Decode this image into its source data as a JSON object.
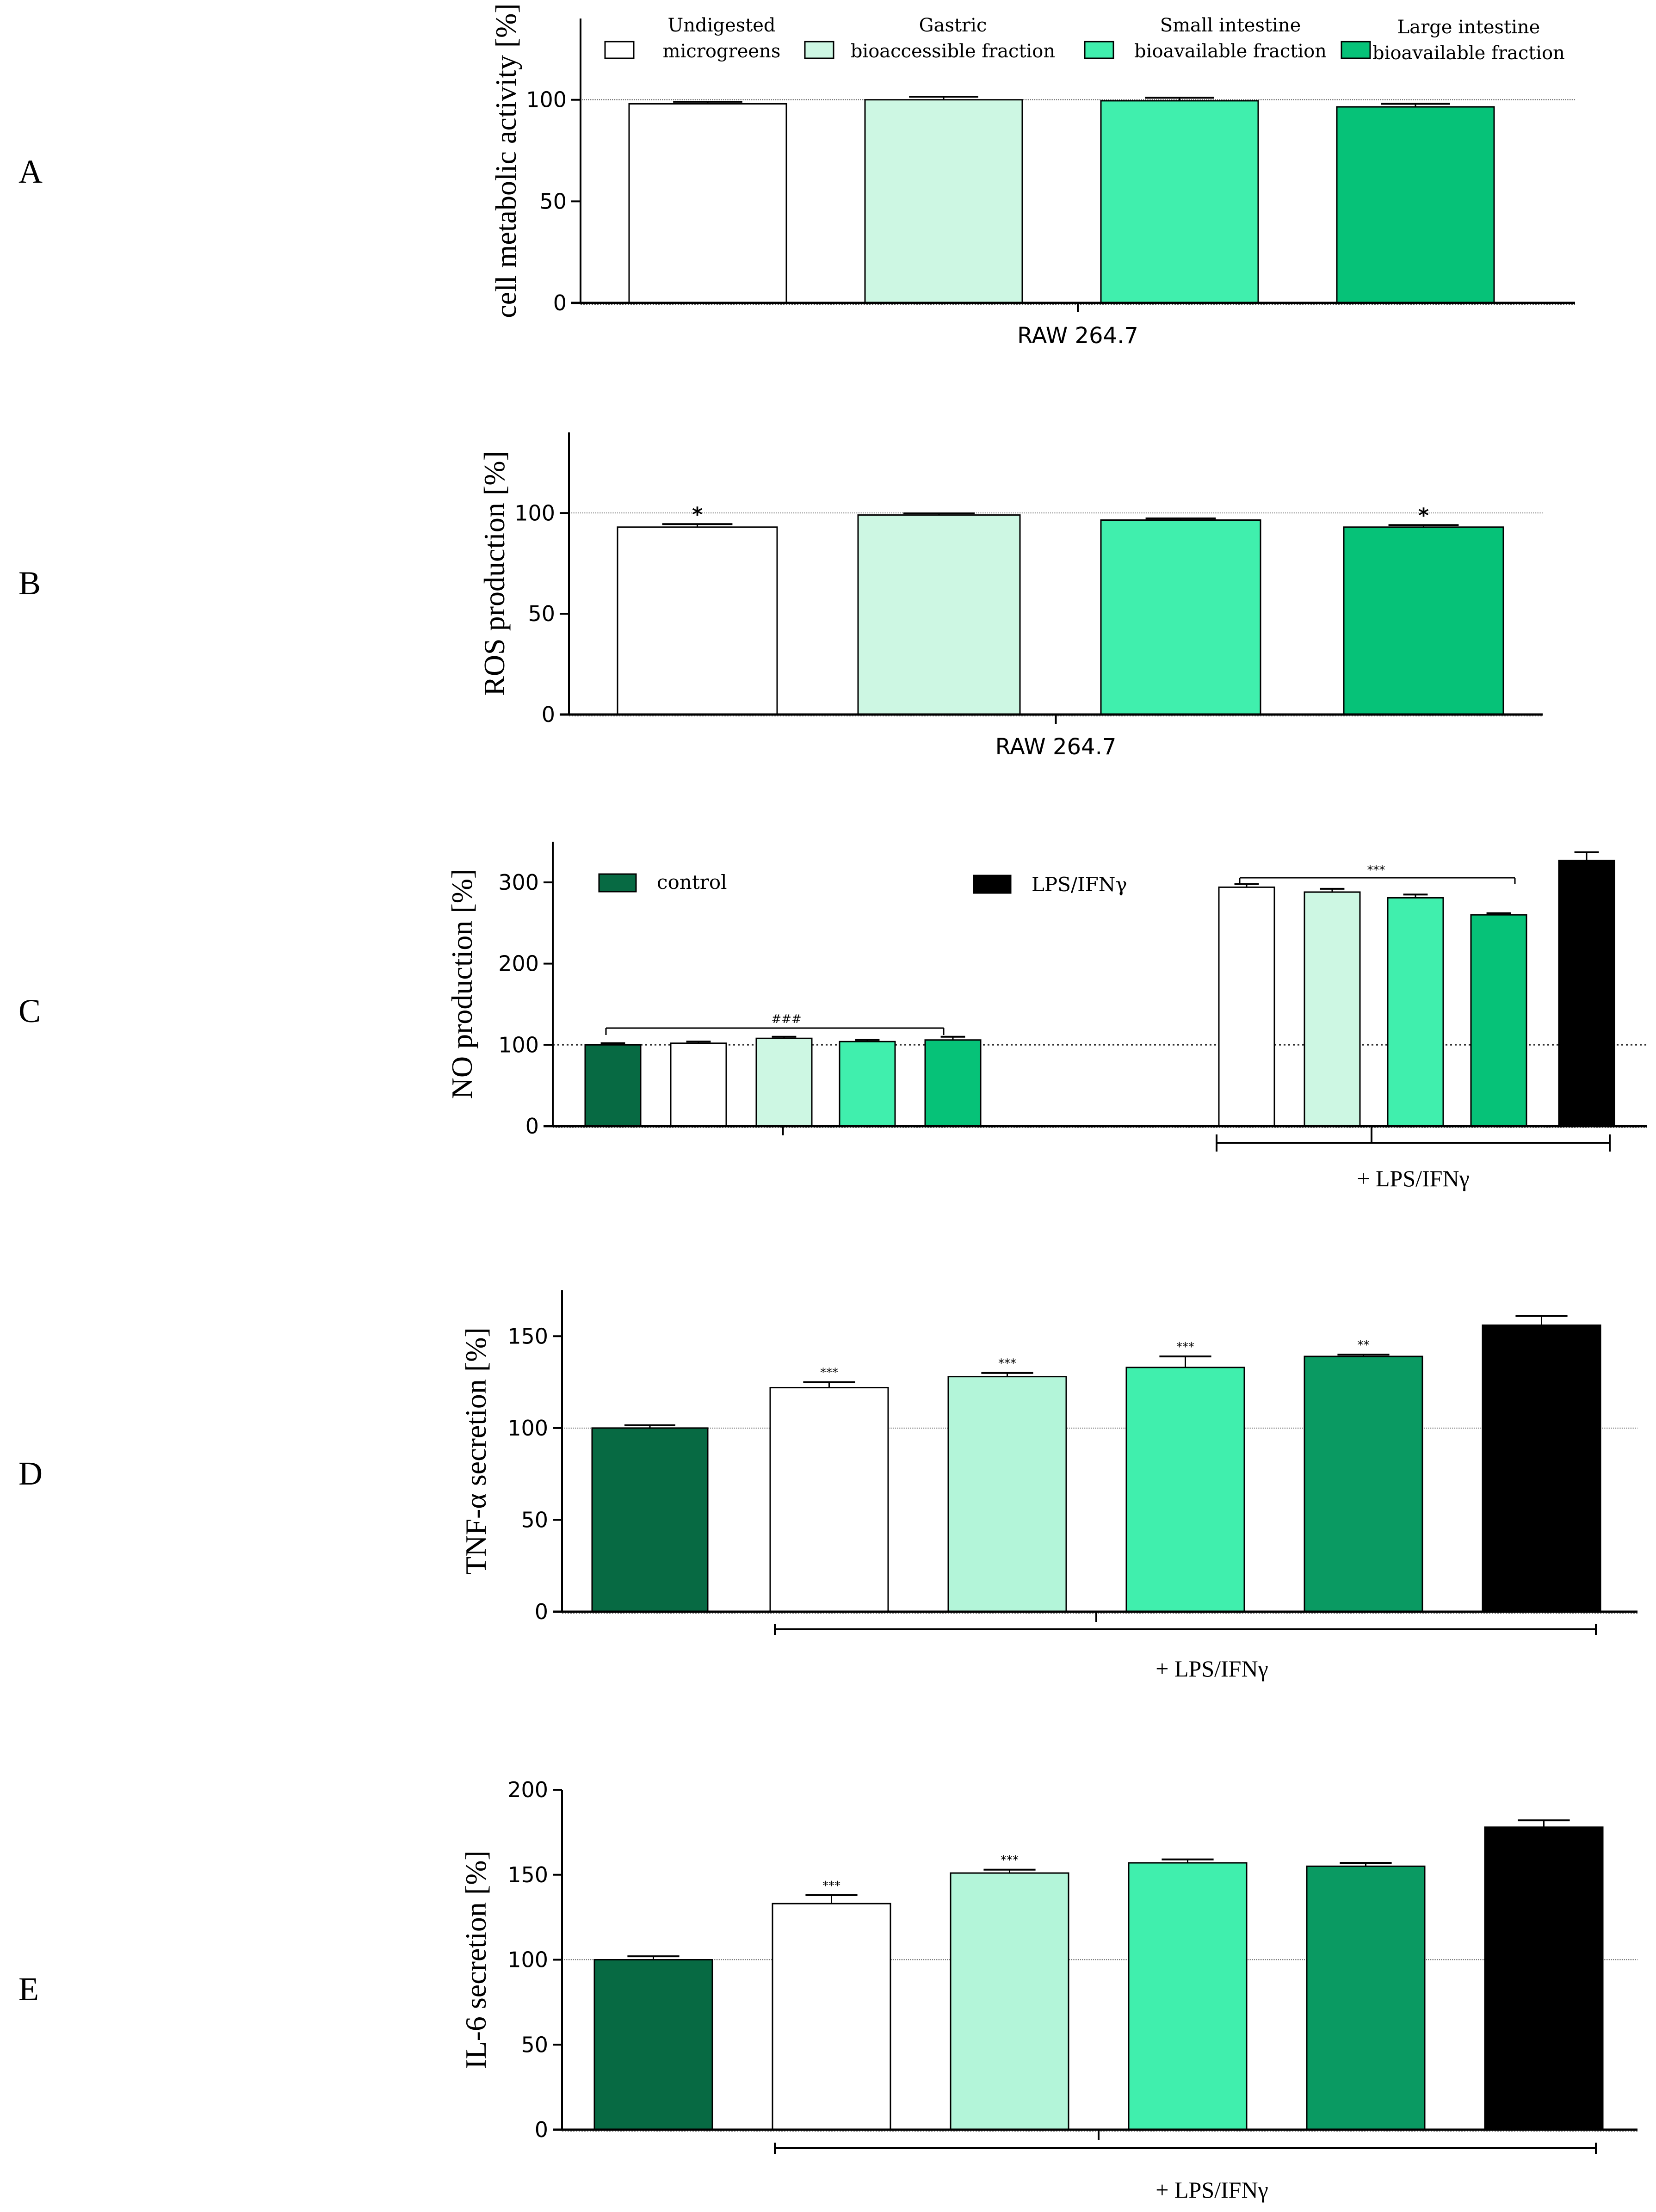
{
  "colors": {
    "white": "#ffffff",
    "gastric": "#cdf7e3",
    "gastric_light": "#b3f5d9",
    "small_intestine": "#40efad",
    "large_intestine": "#06c278",
    "large_intestine_dark": "#0a9a62",
    "control": "#076a43",
    "lps": "#000000"
  },
  "legend_A": [
    {
      "line1": "Undigested",
      "line2": "microgreens",
      "color": "white"
    },
    {
      "line1": "Gastric",
      "line2": "bioaccessible fraction",
      "color": "gastric"
    },
    {
      "line1": "Small intestine",
      "line2": "bioavailable fraction",
      "color": "small_intestine"
    },
    {
      "line1": "Large intestine",
      "line2": "bioavailable fraction",
      "color": "large_intestine"
    }
  ],
  "legend_C": {
    "control": "control",
    "lps": "LPS/IFNγ"
  },
  "chart_data": [
    {
      "panel": "A",
      "type": "bar",
      "ylabel": "cell metabolic activity [%]",
      "xlabel": "RAW 264.7",
      "ylim": [
        0,
        140
      ],
      "yticks": [
        0,
        50,
        100
      ],
      "reference_line": 100,
      "bars": [
        {
          "name": "Undigested microgreens",
          "value": 98,
          "error": 1,
          "sig": "",
          "color": "white"
        },
        {
          "name": "Gastric bioaccessible fraction",
          "value": 100,
          "error": 1.5,
          "sig": "",
          "color": "gastric"
        },
        {
          "name": "Small intestine bioavailable fraction",
          "value": 99.5,
          "error": 1.5,
          "sig": "",
          "color": "small_intestine"
        },
        {
          "name": "Large intestine bioavailable fraction",
          "value": 96.5,
          "error": 1.5,
          "sig": "",
          "color": "large_intestine"
        }
      ]
    },
    {
      "panel": "B",
      "type": "bar",
      "ylabel": "ROS production [%]",
      "xlabel": "RAW 264.7",
      "ylim": [
        0,
        140
      ],
      "yticks": [
        0,
        50,
        100
      ],
      "reference_line": 100,
      "bars": [
        {
          "name": "Undigested microgreens",
          "value": 93,
          "error": 1.5,
          "sig": "*",
          "color": "white"
        },
        {
          "name": "Gastric bioaccessible fraction",
          "value": 99,
          "error": 0.8,
          "sig": "",
          "color": "gastric"
        },
        {
          "name": "Small intestine bioavailable fraction",
          "value": 96.5,
          "error": 0.8,
          "sig": "",
          "color": "small_intestine"
        },
        {
          "name": "Large intestine bioavailable fraction",
          "value": 93,
          "error": 1,
          "sig": "*",
          "color": "large_intestine"
        }
      ]
    },
    {
      "panel": "C",
      "type": "bar",
      "ylabel": "NO production [%]",
      "group_label": "+ LPS/IFNγ",
      "ylim": [
        0,
        350
      ],
      "yticks": [
        0,
        100,
        200,
        300
      ],
      "reference_line": 100,
      "group_sig_left": "###",
      "group_sig_right": "***",
      "bars": [
        {
          "name": "control",
          "value": 100,
          "error": 2,
          "color": "control"
        },
        {
          "name": "Undigested microgreens",
          "value": 102,
          "error": 2,
          "color": "white"
        },
        {
          "name": "Gastric bioaccessible fraction",
          "value": 108,
          "error": 2,
          "color": "gastric"
        },
        {
          "name": "Small intestine bioavailable fraction",
          "value": 104,
          "error": 2,
          "color": "small_intestine"
        },
        {
          "name": "Large intestine bioavailable fraction",
          "value": 106,
          "error": 4,
          "color": "large_intestine"
        },
        {
          "name": "Undigested microgreens + LPS/IFNγ",
          "value": 294,
          "error": 4,
          "color": "white"
        },
        {
          "name": "Gastric bioaccessible fraction + LPS/IFNγ",
          "value": 288,
          "error": 4,
          "color": "gastric"
        },
        {
          "name": "Small intestine bioavailable fraction + LPS/IFNγ",
          "value": 281,
          "error": 4,
          "color": "small_intestine"
        },
        {
          "name": "Large intestine bioavailable fraction + LPS/IFNγ",
          "value": 260,
          "error": 2,
          "color": "large_intestine"
        },
        {
          "name": "LPS/IFNγ",
          "value": 327,
          "error": 10,
          "color": "lps"
        }
      ]
    },
    {
      "panel": "D",
      "type": "bar",
      "ylabel": "TNF-α secretion [%]",
      "group_label": "+ LPS/IFNγ",
      "ylim": [
        0,
        175
      ],
      "yticks": [
        0,
        50,
        100,
        150
      ],
      "reference_line": 100,
      "bars": [
        {
          "name": "control",
          "value": 100,
          "error": 1.5,
          "sig": "",
          "color": "control"
        },
        {
          "name": "Undigested microgreens",
          "value": 122,
          "error": 3,
          "sig": "***",
          "color": "white"
        },
        {
          "name": "Gastric bioaccessible fraction",
          "value": 128,
          "error": 2,
          "sig": "***",
          "color": "gastric_light"
        },
        {
          "name": "Small intestine bioavailable fraction",
          "value": 133,
          "error": 6,
          "sig": "***",
          "color": "small_intestine"
        },
        {
          "name": "Large intestine bioavailable fraction",
          "value": 139,
          "error": 1,
          "sig": "**",
          "color": "large_intestine_dark"
        },
        {
          "name": "LPS/IFNγ",
          "value": 156,
          "error": 5,
          "sig": "",
          "color": "lps"
        }
      ]
    },
    {
      "panel": "E",
      "type": "bar",
      "ylabel": "IL-6 secretion [%]",
      "group_label": "+ LPS/IFNγ",
      "ylim": [
        0,
        200
      ],
      "yticks": [
        0,
        50,
        100,
        150,
        200
      ],
      "reference_line": 100,
      "bars": [
        {
          "name": "control",
          "value": 100,
          "error": 2,
          "sig": "",
          "color": "control"
        },
        {
          "name": "Undigested microgreens",
          "value": 133,
          "error": 5,
          "sig": "***",
          "color": "white"
        },
        {
          "name": "Gastric bioaccessible fraction",
          "value": 151,
          "error": 2,
          "sig": "***",
          "color": "gastric_light"
        },
        {
          "name": "Small intestine bioavailable fraction",
          "value": 157,
          "error": 2,
          "sig": "",
          "color": "small_intestine"
        },
        {
          "name": "Large intestine bioavailable fraction",
          "value": 155,
          "error": 2,
          "sig": "",
          "color": "large_intestine_dark"
        },
        {
          "name": "LPS/IFNγ",
          "value": 178,
          "error": 4,
          "sig": "",
          "color": "lps"
        }
      ]
    }
  ]
}
